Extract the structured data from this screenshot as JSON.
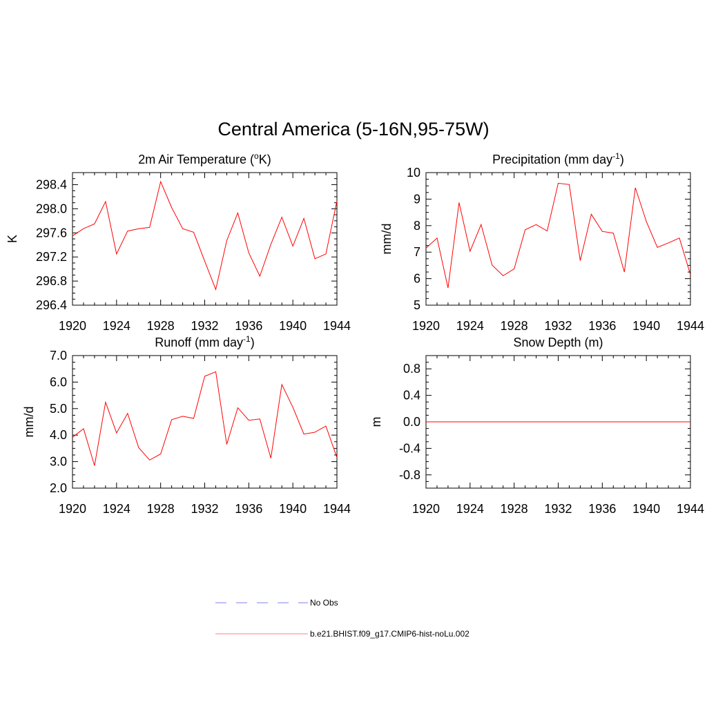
{
  "figure": {
    "title": "Central America (5-16N,95-75W)"
  },
  "colors": {
    "series": "#ff0000",
    "obs": "#9999ee",
    "legend_line": "#ff9999",
    "frame": "#000000"
  },
  "chart_data": [
    {
      "type": "line",
      "title": "2m Air Temperature (",
      "title_sup": "o",
      "title_rest": "K)",
      "ylabel": "K",
      "xlim": [
        1920,
        1944
      ],
      "ylim": [
        296.4,
        298.6
      ],
      "xticks": [
        1920,
        1924,
        1928,
        1932,
        1936,
        1940,
        1944
      ],
      "yticks": [
        296.4,
        296.8,
        297.2,
        297.6,
        298.0,
        298.4
      ],
      "ytick_labels": [
        "296.4",
        "296.8",
        "297.2",
        "297.6",
        "298.0",
        "298.4"
      ],
      "x": [
        1920,
        1921,
        1922,
        1923,
        1924,
        1925,
        1926,
        1927,
        1928,
        1929,
        1930,
        1931,
        1932,
        1933,
        1934,
        1935,
        1936,
        1937,
        1938,
        1939,
        1940,
        1941,
        1942,
        1943,
        1944
      ],
      "series": [
        {
          "name": "b.e21.BHIST.f09_g17.CMIP6-hist-noLu.002",
          "values": [
            297.55,
            297.67,
            297.75,
            298.12,
            297.25,
            297.63,
            297.67,
            297.69,
            298.45,
            298.02,
            297.67,
            297.61,
            297.13,
            296.66,
            297.47,
            297.93,
            297.27,
            296.88,
            297.41,
            297.86,
            297.38,
            297.84,
            297.17,
            297.25,
            298.13
          ]
        }
      ]
    },
    {
      "type": "line",
      "title": "Precipitation (mm day",
      "title_sup": "-1",
      "title_rest": ")",
      "ylabel": "mm/d",
      "xlim": [
        1920,
        1944
      ],
      "ylim": [
        5,
        10
      ],
      "xticks": [
        1920,
        1924,
        1928,
        1932,
        1936,
        1940,
        1944
      ],
      "yticks": [
        5,
        6,
        7,
        8,
        9,
        10
      ],
      "ytick_labels": [
        "5",
        "6",
        "7",
        "8",
        "9",
        "10"
      ],
      "x": [
        1920,
        1921,
        1922,
        1923,
        1924,
        1925,
        1926,
        1927,
        1928,
        1929,
        1930,
        1931,
        1932,
        1933,
        1934,
        1935,
        1936,
        1937,
        1938,
        1939,
        1940,
        1941,
        1942,
        1943,
        1944
      ],
      "series": [
        {
          "name": "b.e21.BHIST.f09_g17.CMIP6-hist-noLu.002",
          "values": [
            7.15,
            7.53,
            5.65,
            8.87,
            7.03,
            8.04,
            6.51,
            6.11,
            6.37,
            7.84,
            8.04,
            7.8,
            9.6,
            9.55,
            6.68,
            8.43,
            7.78,
            7.72,
            6.25,
            9.43,
            8.15,
            7.18,
            7.35,
            7.53,
            6.15
          ]
        }
      ]
    },
    {
      "type": "line",
      "title": "Runoff (mm day",
      "title_sup": "-1",
      "title_rest": ")",
      "ylabel": "mm/d",
      "xlim": [
        1920,
        1944
      ],
      "ylim": [
        2.0,
        7.0
      ],
      "xticks": [
        1920,
        1924,
        1928,
        1932,
        1936,
        1940,
        1944
      ],
      "yticks": [
        2.0,
        3.0,
        4.0,
        5.0,
        6.0,
        7.0
      ],
      "ytick_labels": [
        "2.0",
        "3.0",
        "4.0",
        "5.0",
        "6.0",
        "7.0"
      ],
      "x": [
        1920,
        1921,
        1922,
        1923,
        1924,
        1925,
        1926,
        1927,
        1928,
        1929,
        1930,
        1931,
        1932,
        1933,
        1934,
        1935,
        1936,
        1937,
        1938,
        1939,
        1940,
        1941,
        1942,
        1943,
        1944
      ],
      "series": [
        {
          "name": "b.e21.BHIST.f09_g17.CMIP6-hist-noLu.002",
          "values": [
            3.92,
            4.24,
            2.85,
            5.24,
            4.08,
            4.82,
            3.53,
            3.06,
            3.29,
            4.58,
            4.71,
            4.63,
            6.22,
            6.39,
            3.65,
            5.03,
            4.56,
            4.61,
            3.13,
            5.91,
            5.05,
            4.04,
            4.11,
            4.34,
            3.15
          ]
        }
      ]
    },
    {
      "type": "line",
      "title": "Snow Depth (m)",
      "title_sup": "",
      "title_rest": "",
      "ylabel": "m",
      "xlim": [
        1920,
        1944
      ],
      "ylim": [
        -1.0,
        1.0
      ],
      "xticks": [
        1920,
        1924,
        1928,
        1932,
        1936,
        1940,
        1944
      ],
      "yticks": [
        -0.8,
        -0.4,
        0.0,
        0.4,
        0.8
      ],
      "ytick_labels": [
        "-0.8",
        "-0.4",
        "0.0",
        "0.4",
        "0.8"
      ],
      "x": [
        1920,
        1944
      ],
      "series": [
        {
          "name": "b.e21.BHIST.f09_g17.CMIP6-hist-noLu.002",
          "values": [
            0,
            0
          ]
        }
      ]
    }
  ],
  "legend": {
    "obs_label": "No Obs",
    "model_label": "b.e21.BHIST.f09_g17.CMIP6-hist-noLu.002"
  }
}
